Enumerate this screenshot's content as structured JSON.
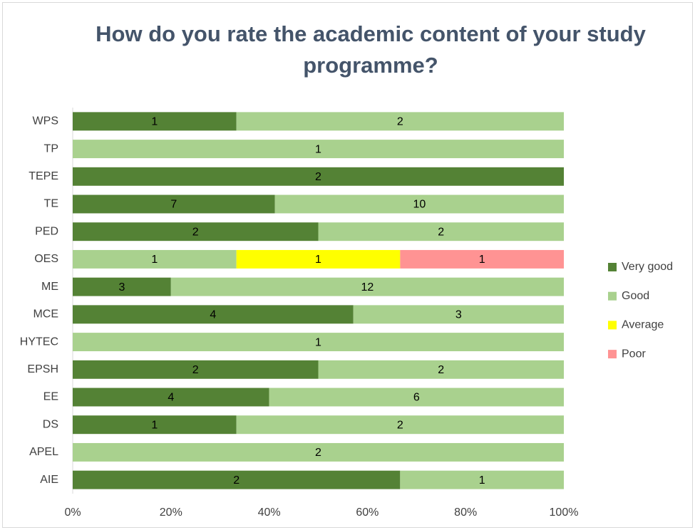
{
  "chart_data": {
    "type": "bar",
    "orientation": "horizontal",
    "stacking": "percent",
    "title": "How do you rate the academic content of your study programme?",
    "categories": [
      "WPS",
      "TP",
      "TEPE",
      "TE",
      "PED",
      "OES",
      "ME",
      "MCE",
      "HYTEC",
      "EPSH",
      "EE",
      "DS",
      "APEL",
      "AIE"
    ],
    "series": [
      {
        "name": "Very good",
        "color": "#548235",
        "values": [
          1,
          0,
          2,
          7,
          2,
          0,
          3,
          4,
          0,
          2,
          4,
          1,
          0,
          2
        ]
      },
      {
        "name": "Good",
        "color": "#a9d18e",
        "values": [
          2,
          1,
          0,
          10,
          2,
          1,
          12,
          3,
          1,
          2,
          6,
          2,
          2,
          1
        ]
      },
      {
        "name": "Average",
        "color": "#ffff00",
        "values": [
          0,
          0,
          0,
          0,
          0,
          1,
          0,
          0,
          0,
          0,
          0,
          0,
          0,
          0
        ]
      },
      {
        "name": "Poor",
        "color": "#ff9393",
        "values": [
          0,
          0,
          0,
          0,
          0,
          1,
          0,
          0,
          0,
          0,
          0,
          0,
          0,
          0
        ]
      }
    ],
    "xlim": [
      0,
      100
    ],
    "xticks": [
      {
        "value": 0,
        "label": "0%"
      },
      {
        "value": 20,
        "label": "20%"
      },
      {
        "value": 40,
        "label": "40%"
      },
      {
        "value": 60,
        "label": "60%"
      },
      {
        "value": 80,
        "label": "80%"
      },
      {
        "value": 100,
        "label": "100%"
      }
    ],
    "grid": false,
    "legend": "right"
  }
}
